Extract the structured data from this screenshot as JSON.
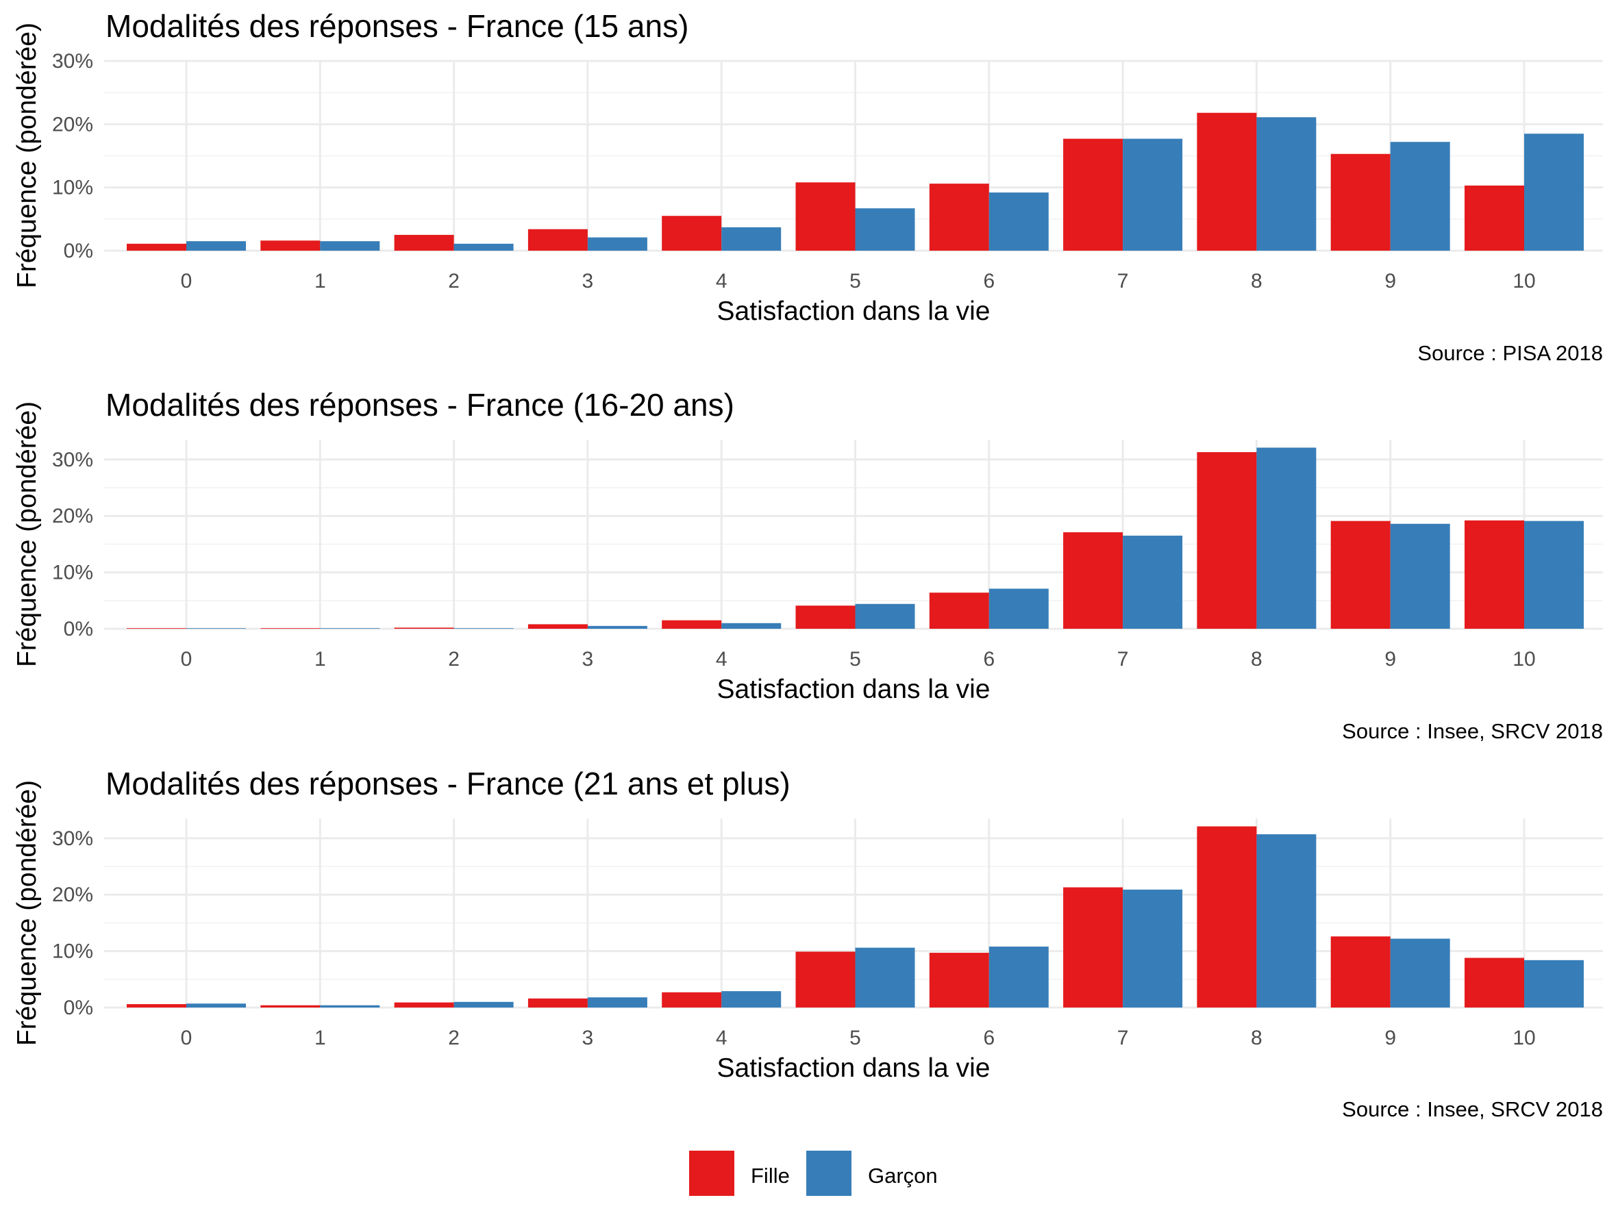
{
  "chart_data": [
    {
      "type": "bar",
      "title": "Modalités des réponses - France (15 ans)",
      "xlabel": "Satisfaction dans la vie",
      "ylabel": "Fréquence (pondérée)",
      "caption": "Source : PISA 2018",
      "categories": [
        "0",
        "1",
        "2",
        "3",
        "4",
        "5",
        "6",
        "7",
        "8",
        "9",
        "10"
      ],
      "ylim": [
        0,
        0.3
      ],
      "yticks": [
        0,
        0.1,
        0.2,
        0.3
      ],
      "ytick_labels": [
        "0%",
        "10%",
        "20%",
        "30%"
      ],
      "series": [
        {
          "name": "Fille",
          "color": "#E41A1C",
          "values": [
            0.011,
            0.016,
            0.025,
            0.034,
            0.055,
            0.108,
            0.106,
            0.177,
            0.218,
            0.153,
            0.103
          ]
        },
        {
          "name": "Garçon",
          "color": "#377EB8",
          "values": [
            0.015,
            0.015,
            0.011,
            0.021,
            0.037,
            0.067,
            0.092,
            0.177,
            0.211,
            0.172,
            0.185
          ]
        }
      ],
      "grid": true
    },
    {
      "type": "bar",
      "title": "Modalités des réponses - France (16-20 ans)",
      "xlabel": "Satisfaction dans la vie",
      "ylabel": "Fréquence (pondérée)",
      "caption": "Source : Insee, SRCV 2018",
      "categories": [
        "0",
        "1",
        "2",
        "3",
        "4",
        "5",
        "6",
        "7",
        "8",
        "9",
        "10"
      ],
      "ylim": [
        0,
        0.335
      ],
      "yticks": [
        0,
        0.1,
        0.2,
        0.3
      ],
      "ytick_labels": [
        "0%",
        "10%",
        "20%",
        "30%"
      ],
      "series": [
        {
          "name": "Fille",
          "color": "#E41A1C",
          "values": [
            0.001,
            0.001,
            0.002,
            0.008,
            0.015,
            0.041,
            0.064,
            0.171,
            0.313,
            0.191,
            0.192
          ]
        },
        {
          "name": "Garçon",
          "color": "#377EB8",
          "values": [
            0.001,
            0.001,
            0.001,
            0.005,
            0.01,
            0.044,
            0.071,
            0.165,
            0.321,
            0.186,
            0.191
          ]
        }
      ],
      "grid": true
    },
    {
      "type": "bar",
      "title": "Modalités des réponses - France (21 ans et plus)",
      "xlabel": "Satisfaction dans la vie",
      "ylabel": "Fréquence (pondérée)",
      "caption": "Source : Insee, SRCV 2018",
      "categories": [
        "0",
        "1",
        "2",
        "3",
        "4",
        "5",
        "6",
        "7",
        "8",
        "9",
        "10"
      ],
      "ylim": [
        0,
        0.335
      ],
      "yticks": [
        0,
        0.1,
        0.2,
        0.3
      ],
      "ytick_labels": [
        "0%",
        "10%",
        "20%",
        "30%"
      ],
      "series": [
        {
          "name": "Fille",
          "color": "#E41A1C",
          "values": [
            0.006,
            0.004,
            0.009,
            0.016,
            0.027,
            0.099,
            0.097,
            0.213,
            0.321,
            0.126,
            0.088
          ]
        },
        {
          "name": "Garçon",
          "color": "#377EB8",
          "values": [
            0.007,
            0.004,
            0.01,
            0.018,
            0.029,
            0.106,
            0.108,
            0.209,
            0.307,
            0.122,
            0.084
          ]
        }
      ],
      "grid": true
    }
  ],
  "legend": {
    "position": "bottom",
    "items": [
      {
        "label": "Fille",
        "color": "#E41A1C"
      },
      {
        "label": "Garçon",
        "color": "#377EB8"
      }
    ]
  }
}
